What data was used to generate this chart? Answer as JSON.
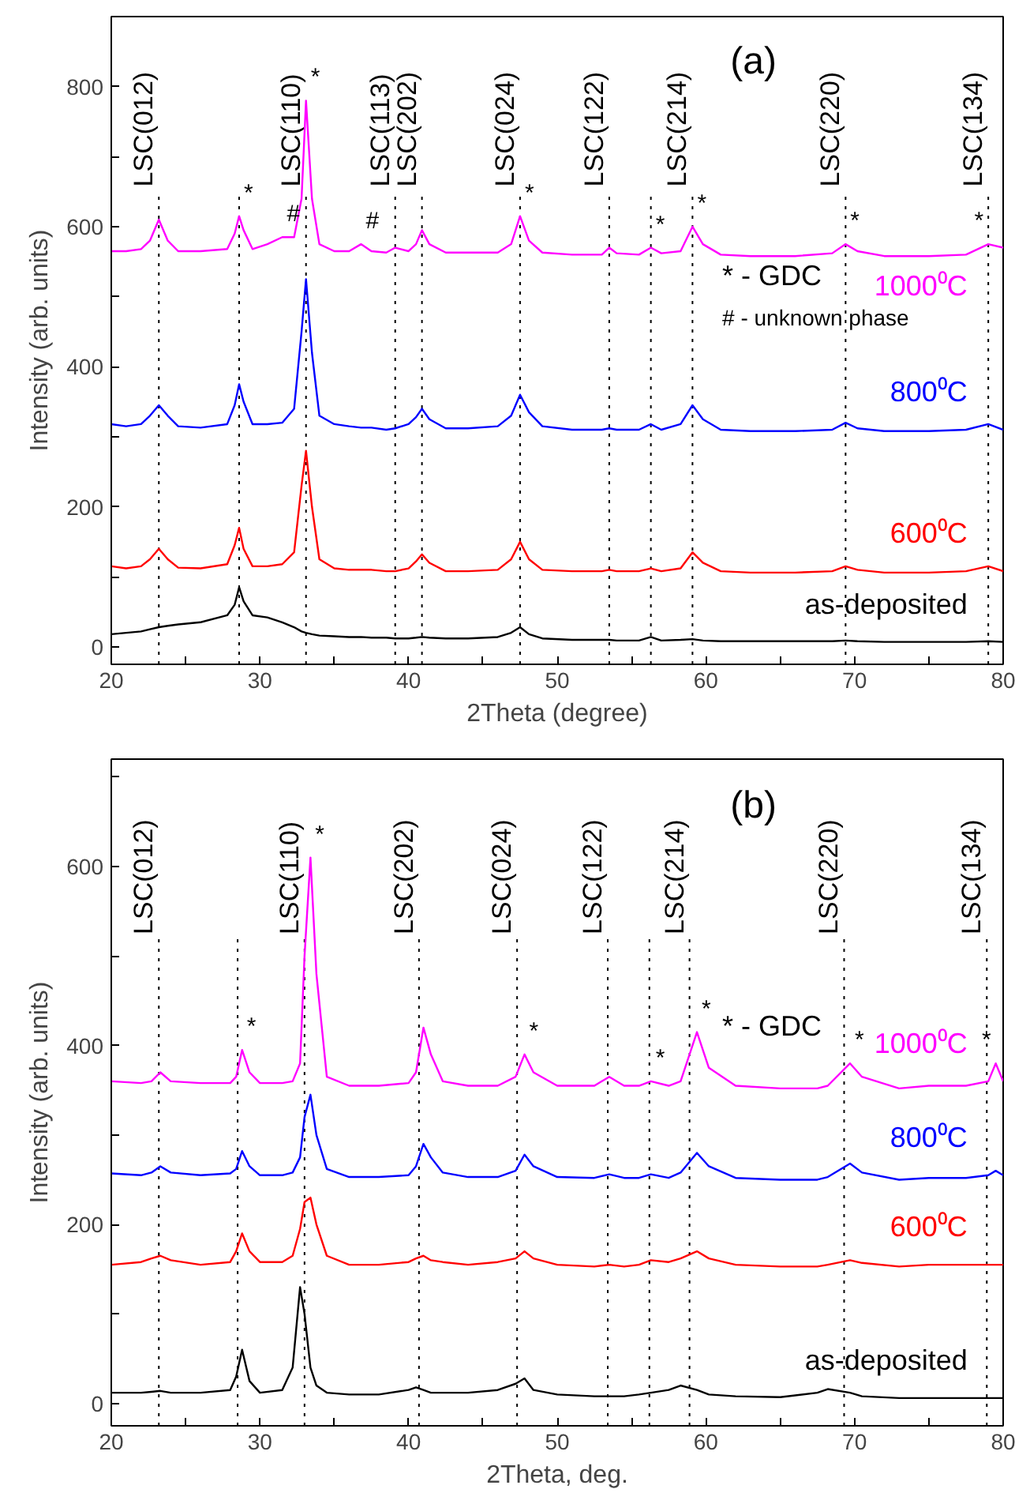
{
  "chart_data": [
    {
      "type": "line",
      "title": "(a)",
      "xlabel": "2Theta (degree)",
      "ylabel": "Intensity (arb. units)",
      "line_style": "solid",
      "xlim": [
        20,
        80
      ],
      "ylim": [
        -25,
        900
      ],
      "xticks": [
        20,
        {
          "value": 25,
          "label": null
        },
        30,
        {
          "value": 35,
          "label": null
        },
        40,
        {
          "value": 45,
          "label": null
        },
        50,
        {
          "value": 55,
          "label": null
        },
        60,
        {
          "value": 65,
          "label": null
        },
        70,
        {
          "value": 75,
          "label": null
        },
        80
      ],
      "yticks": [
        0,
        {
          "value": 100,
          "label": null
        },
        200,
        {
          "value": 300,
          "label": null
        },
        400,
        {
          "value": 500,
          "label": null
        },
        600,
        {
          "value": 700,
          "label": null
        },
        800
      ],
      "x": [
        20,
        21,
        22,
        22.6,
        23.2,
        23.8,
        24.5,
        26,
        27.8,
        28.3,
        28.6,
        28.9,
        29.5,
        30.5,
        31.5,
        32.3,
        32.8,
        33.1,
        33.5,
        34,
        35,
        36,
        36.8,
        37.5,
        38.5,
        39.1,
        40,
        40.5,
        40.9,
        41.4,
        42.5,
        44,
        46,
        46.9,
        47.5,
        48.1,
        49,
        51,
        53,
        53.5,
        54,
        55.5,
        56.3,
        57,
        58.3,
        59.1,
        59.8,
        61,
        63,
        66,
        68.5,
        69.4,
        70.2,
        72,
        75,
        77.5,
        79,
        80
      ],
      "series": [
        {
          "name": "1000⁰C",
          "color": "#ff00ff",
          "values": [
            565,
            565,
            568,
            580,
            610,
            580,
            565,
            565,
            568,
            590,
            615,
            595,
            568,
            575,
            585,
            585,
            640,
            780,
            640,
            575,
            565,
            565,
            575,
            565,
            563,
            570,
            565,
            575,
            595,
            575,
            563,
            563,
            563,
            575,
            615,
            580,
            563,
            560,
            560,
            570,
            562,
            560,
            570,
            562,
            565,
            600,
            575,
            560,
            558,
            558,
            562,
            575,
            565,
            558,
            558,
            560,
            575,
            570
          ]
        },
        {
          "name": "800⁰C",
          "color": "#0000ff",
          "values": [
            318,
            315,
            318,
            330,
            345,
            330,
            315,
            313,
            318,
            345,
            375,
            350,
            318,
            318,
            320,
            340,
            450,
            525,
            420,
            330,
            318,
            315,
            313,
            313,
            310,
            312,
            318,
            328,
            340,
            325,
            312,
            312,
            315,
            330,
            360,
            335,
            315,
            310,
            310,
            312,
            310,
            310,
            318,
            310,
            318,
            345,
            325,
            310,
            308,
            308,
            310,
            320,
            312,
            308,
            308,
            310,
            318,
            310
          ]
        },
        {
          "name": "600⁰C",
          "color": "#ff0000",
          "values": [
            115,
            112,
            115,
            125,
            140,
            125,
            113,
            112,
            118,
            145,
            170,
            140,
            115,
            115,
            118,
            135,
            230,
            280,
            200,
            125,
            112,
            110,
            110,
            110,
            108,
            108,
            112,
            122,
            132,
            120,
            108,
            108,
            110,
            125,
            150,
            125,
            110,
            108,
            108,
            110,
            108,
            108,
            112,
            108,
            112,
            135,
            120,
            108,
            106,
            106,
            108,
            115,
            110,
            106,
            106,
            108,
            115,
            108
          ]
        },
        {
          "name": "as-deposited",
          "color": "#000000",
          "values": [
            18,
            20,
            22,
            25,
            28,
            30,
            32,
            35,
            45,
            60,
            85,
            65,
            45,
            42,
            35,
            28,
            22,
            20,
            18,
            16,
            15,
            14,
            14,
            13,
            13,
            12,
            12,
            13,
            14,
            13,
            12,
            12,
            14,
            20,
            28,
            18,
            12,
            10,
            10,
            10,
            9,
            9,
            14,
            9,
            10,
            11,
            9,
            8,
            8,
            8,
            8,
            9,
            8,
            7,
            7,
            7,
            8,
            7
          ]
        }
      ],
      "ref_lines": [
        {
          "axis": "x",
          "value": 23.2,
          "label": "LSC(012)",
          "line_style": "dotted"
        },
        {
          "axis": "x",
          "value": 28.6,
          "line_style": "dotted"
        },
        {
          "axis": "x",
          "value": 33.1,
          "label": "LSC(110)",
          "line_style": "dotted"
        },
        {
          "axis": "x",
          "value": 39.1,
          "label": "LSC(113)",
          "line_style": "dotted"
        },
        {
          "axis": "x",
          "value": 40.9,
          "label": "LSC(202)",
          "line_style": "dotted"
        },
        {
          "axis": "x",
          "value": 47.5,
          "label": "LSC(024)",
          "line_style": "dotted"
        },
        {
          "axis": "x",
          "value": 53.5,
          "label": "LSC(122)",
          "line_style": "dotted"
        },
        {
          "axis": "x",
          "value": 56.3,
          "line_style": "dotted"
        },
        {
          "axis": "x",
          "value": 59.1,
          "label": "LSC(214)",
          "line_style": "dotted"
        },
        {
          "axis": "x",
          "value": 69.4,
          "label": "LSC(220)",
          "line_style": "dotted"
        },
        {
          "axis": "x",
          "value": 79.0,
          "label": "LSC(134)",
          "line_style": "dotted"
        }
      ],
      "annotations": [
        {
          "text": "*",
          "x": 28.6,
          "y": 615
        },
        {
          "text": "#",
          "x": 31.5,
          "y": 585
        },
        {
          "text": "*",
          "x": 33.1,
          "y": 780
        },
        {
          "text": "#",
          "x": 36.8,
          "y": 575
        },
        {
          "text": "*",
          "x": 47.5,
          "y": 615
        },
        {
          "text": "*",
          "x": 56.3,
          "y": 570
        },
        {
          "text": "*",
          "x": 59.1,
          "y": 600
        },
        {
          "text": "*",
          "x": 69.4,
          "y": 575
        },
        {
          "text": "*",
          "x": 79.0,
          "y": 575
        },
        "* - GDC",
        "# - unknown phase"
      ]
    },
    {
      "type": "line",
      "title": "(b)",
      "xlabel": "2Theta, deg.",
      "ylabel": "Intensity (arb. units)",
      "line_style": "solid",
      "xlim": [
        20,
        80
      ],
      "ylim": [
        -25,
        720
      ],
      "xticks": [
        20,
        {
          "value": 25,
          "label": null
        },
        30,
        {
          "value": 35,
          "label": null
        },
        40,
        {
          "value": 45,
          "label": null
        },
        50,
        {
          "value": 55,
          "label": null
        },
        60,
        {
          "value": 65,
          "label": null
        },
        70,
        {
          "value": 75,
          "label": null
        },
        80
      ],
      "yticks": [
        0,
        {
          "value": 100,
          "label": null
        },
        200,
        {
          "value": 300,
          "label": null
        },
        400,
        {
          "value": 500,
          "label": null
        },
        600,
        {
          "value": 700,
          "label": null
        }
      ],
      "x": [
        20,
        22,
        22.7,
        23.3,
        24,
        26,
        28,
        28.4,
        28.8,
        29.3,
        30,
        31.5,
        32.2,
        32.7,
        33.0,
        33.4,
        33.8,
        34.5,
        36,
        38,
        40,
        40.5,
        41.0,
        41.5,
        42.3,
        44,
        46,
        47.2,
        47.8,
        48.4,
        50,
        52.5,
        53.5,
        54.5,
        55.5,
        56.3,
        57.5,
        58.3,
        59.4,
        60.2,
        62,
        65,
        67.5,
        68.2,
        69.7,
        70.5,
        73,
        75,
        77.5,
        79,
        79.5,
        80
      ],
      "series": [
        {
          "name": "1000⁰C",
          "color": "#ff00ff",
          "values": [
            360,
            358,
            360,
            370,
            360,
            358,
            358,
            365,
            395,
            370,
            358,
            358,
            360,
            380,
            500,
            610,
            480,
            365,
            355,
            355,
            358,
            370,
            420,
            390,
            360,
            355,
            355,
            365,
            390,
            370,
            355,
            355,
            365,
            355,
            355,
            360,
            355,
            360,
            415,
            375,
            355,
            352,
            352,
            355,
            380,
            365,
            352,
            355,
            355,
            360,
            380,
            360
          ]
        },
        {
          "name": "800⁰C",
          "color": "#0000ff",
          "values": [
            257,
            255,
            258,
            265,
            258,
            255,
            257,
            262,
            282,
            265,
            255,
            255,
            258,
            275,
            320,
            345,
            300,
            262,
            253,
            253,
            255,
            265,
            290,
            275,
            258,
            253,
            253,
            260,
            278,
            265,
            253,
            252,
            256,
            252,
            252,
            256,
            252,
            258,
            280,
            265,
            252,
            250,
            250,
            253,
            268,
            258,
            250,
            252,
            252,
            255,
            260,
            255
          ]
        },
        {
          "name": "600⁰C",
          "color": "#ff0000",
          "values": [
            155,
            158,
            162,
            165,
            160,
            155,
            158,
            170,
            190,
            170,
            158,
            158,
            165,
            195,
            225,
            230,
            200,
            165,
            155,
            155,
            158,
            162,
            165,
            160,
            158,
            155,
            158,
            162,
            170,
            162,
            155,
            153,
            155,
            153,
            155,
            160,
            158,
            162,
            170,
            162,
            155,
            153,
            153,
            155,
            160,
            157,
            153,
            155,
            155,
            155,
            155,
            155
          ]
        },
        {
          "name": "as-deposited",
          "color": "#000000",
          "values": [
            12,
            12,
            13,
            14,
            12,
            12,
            15,
            30,
            60,
            25,
            12,
            15,
            40,
            130,
            100,
            40,
            20,
            12,
            10,
            10,
            15,
            18,
            15,
            12,
            12,
            12,
            15,
            22,
            28,
            15,
            10,
            8,
            8,
            8,
            10,
            12,
            15,
            20,
            15,
            10,
            8,
            7,
            12,
            16,
            12,
            8,
            6,
            6,
            6,
            6,
            6,
            6
          ]
        }
      ],
      "ref_lines": [
        {
          "axis": "x",
          "value": 23.2,
          "label": "LSC(012)",
          "line_style": "dotted"
        },
        {
          "axis": "x",
          "value": 28.5,
          "line_style": "dotted"
        },
        {
          "axis": "x",
          "value": 33.0,
          "label": "LSC(110)",
          "line_style": "dotted"
        },
        {
          "axis": "x",
          "value": 40.7,
          "label": "LSC(202)",
          "line_style": "dotted"
        },
        {
          "axis": "x",
          "value": 47.3,
          "label": "LSC(024)",
          "line_style": "dotted"
        },
        {
          "axis": "x",
          "value": 53.4,
          "label": "LSC(122)",
          "line_style": "dotted"
        },
        {
          "axis": "x",
          "value": 56.2,
          "line_style": "dotted"
        },
        {
          "axis": "x",
          "value": 58.9,
          "label": "LSC(214)",
          "line_style": "dotted"
        },
        {
          "axis": "x",
          "value": 69.3,
          "label": "LSC(220)",
          "line_style": "dotted"
        },
        {
          "axis": "x",
          "value": 78.9,
          "label": "LSC(134)",
          "line_style": "dotted"
        }
      ],
      "annotations": [
        {
          "text": "*",
          "x": 28.8,
          "y": 395
        },
        {
          "text": "*",
          "x": 33.4,
          "y": 610
        },
        {
          "text": "*",
          "x": 47.8,
          "y": 390
        },
        {
          "text": "*",
          "x": 56.3,
          "y": 360
        },
        {
          "text": "*",
          "x": 59.4,
          "y": 415
        },
        {
          "text": "*",
          "x": 69.7,
          "y": 380
        },
        {
          "text": "*",
          "x": 79.5,
          "y": 380
        },
        "* - GDC"
      ]
    }
  ]
}
